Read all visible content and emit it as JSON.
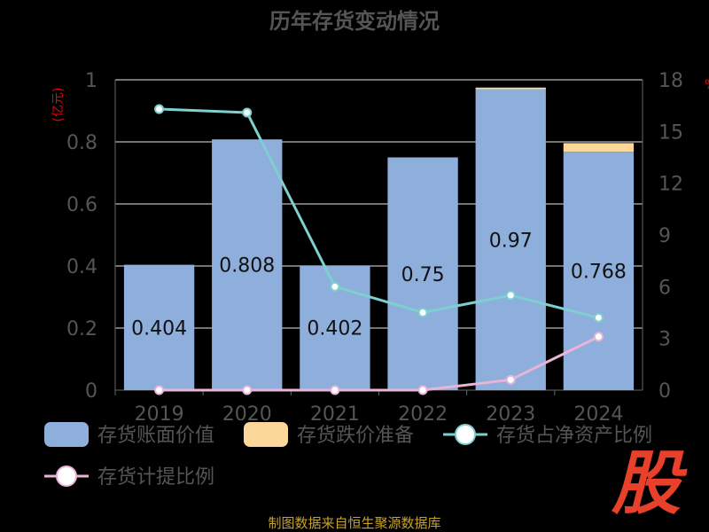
{
  "chart_data": {
    "type": "bar",
    "title": "历年存货变动情况",
    "categories": [
      "2019",
      "2020",
      "2021",
      "2022",
      "2023",
      "2024"
    ],
    "left_unit": "(亿元)",
    "right_unit": "%",
    "left_ylim": [
      0,
      1
    ],
    "left_ticks": [
      "0",
      "0.2",
      "0.4",
      "0.6",
      "0.8",
      "1"
    ],
    "right_ylim": [
      0,
      18
    ],
    "right_ticks": [
      "0",
      "3",
      "6",
      "9",
      "12",
      "15",
      "18"
    ],
    "bar_series": [
      {
        "name": "存货账面价值",
        "color": "#8eaedb",
        "values": [
          0.404,
          0.808,
          0.402,
          0.75,
          0.97,
          0.768
        ],
        "labels": [
          "0.404",
          "0.808",
          "0.402",
          "0.75",
          "0.97",
          "0.768"
        ]
      },
      {
        "name": "存货跌价准备",
        "color": "#fcd79a",
        "values": [
          0,
          0,
          0,
          0,
          0.005,
          0.028
        ]
      }
    ],
    "line_series": [
      {
        "name": "存货占净资产比例",
        "color": "#7ecfcf",
        "values": [
          16.3,
          16.1,
          6.0,
          4.5,
          5.5,
          4.2
        ]
      },
      {
        "name": "存货计提比例",
        "color": "#e8b4d8",
        "values": [
          0,
          0,
          0,
          0,
          0.6,
          3.1
        ]
      }
    ],
    "grid": true,
    "legend_position": "bottom"
  },
  "footer": {
    "source": "制图数据来自恒生聚源数据库",
    "logo_text": "股"
  }
}
